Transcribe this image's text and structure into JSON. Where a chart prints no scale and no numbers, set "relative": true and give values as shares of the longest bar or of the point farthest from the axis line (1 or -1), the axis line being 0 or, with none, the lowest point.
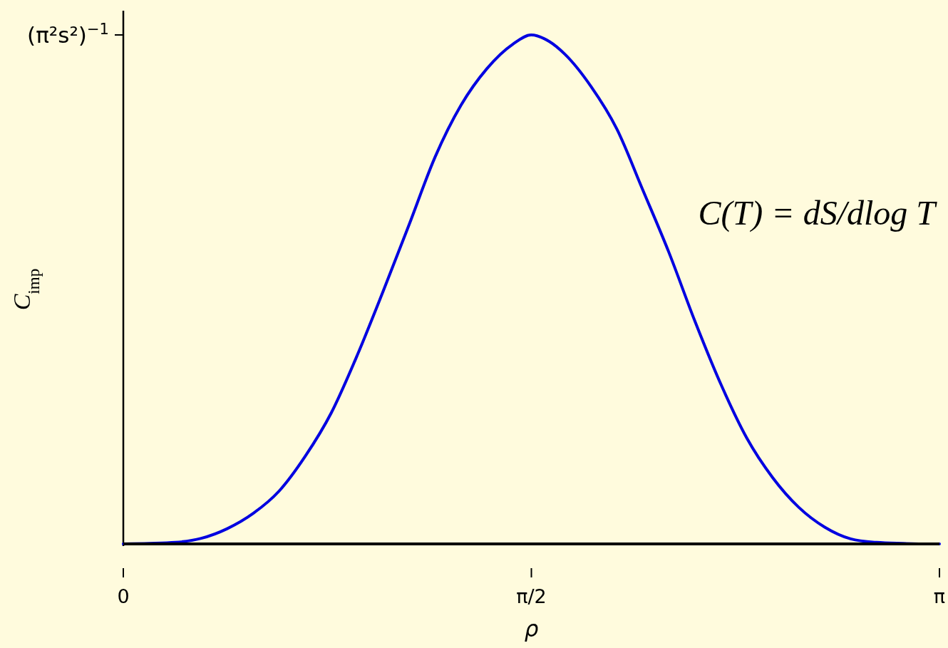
{
  "chart_data": {
    "type": "line",
    "xlabel": "ρ",
    "ylabel": "C$_{imp}$",
    "relative": true,
    "x": [
      0,
      0.1,
      0.2,
      0.3,
      0.4,
      0.5,
      0.6,
      0.7,
      0.8,
      0.9,
      1.0,
      1.1,
      1.2,
      1.3,
      1.4,
      1.5,
      1.57,
      1.64,
      1.7,
      1.8,
      1.9,
      2.0,
      2.1,
      2.2,
      2.3,
      2.4,
      2.5,
      2.6,
      2.7,
      2.8,
      2.9,
      3.0,
      3.1,
      3.1416
    ],
    "series": [
      {
        "color": "#0000e0",
        "values": [
          0,
          0.001,
          0.003,
          0.011,
          0.03,
          0.06,
          0.104,
          0.172,
          0.257,
          0.37,
          0.496,
          0.627,
          0.76,
          0.862,
          0.934,
          0.982,
          1,
          0.987,
          0.962,
          0.899,
          0.815,
          0.695,
          0.573,
          0.438,
          0.314,
          0.208,
          0.13,
          0.072,
          0.033,
          0.01,
          0.003,
          0.001,
          0,
          0
        ]
      }
    ],
    "xlim": [
      0,
      3.1416
    ],
    "xticks": [
      {
        "value": 0,
        "label": "0"
      },
      {
        "value": 1.5708,
        "label": "π/2"
      },
      {
        "value": 3.1416,
        "label": "π"
      }
    ],
    "annotations": [
      "(π²s²)$^{−1}$",
      "C(T) = dS/dlog T"
    ]
  }
}
